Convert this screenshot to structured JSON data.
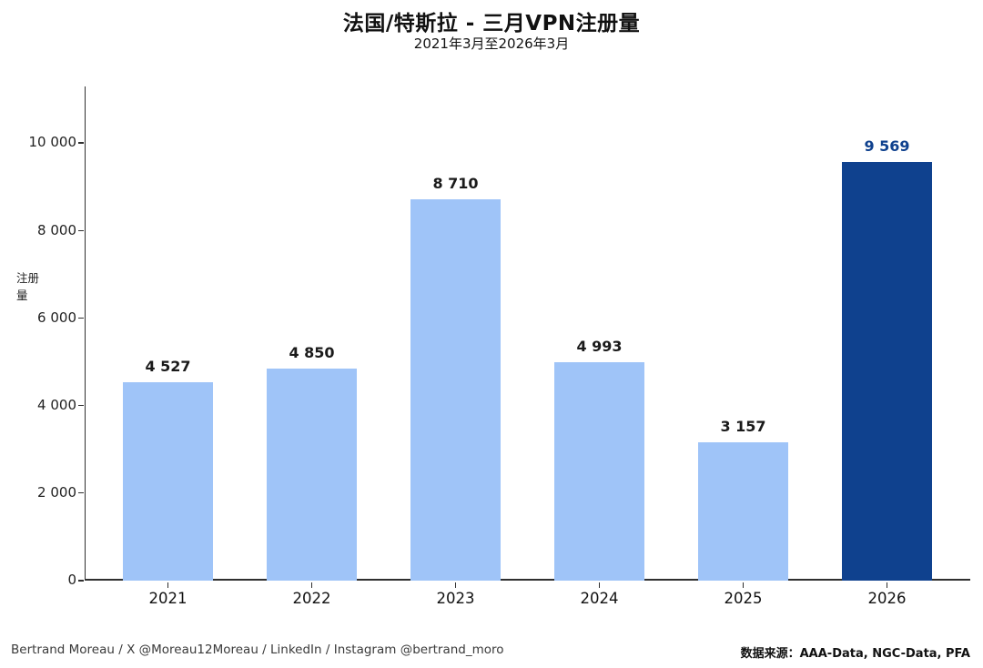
{
  "header": {
    "title": "法国/特斯拉 - 三月VPN注册量",
    "subtitle": "2021年3月至2026年3月"
  },
  "footer": {
    "credit": "Bertrand Moreau / X @Moreau12Moreau / LinkedIn / Instagram @bertrand_moro",
    "source_label": "数据来源：",
    "source_value": "AAA-Data, NGC-Data, PFA"
  },
  "chart_data": {
    "type": "bar",
    "title": "法国/特斯拉 - 三月VPN注册量",
    "subtitle": "2021年3月至2026年3月",
    "xlabel": "",
    "ylabel": "注册量",
    "categories": [
      "2021",
      "2022",
      "2023",
      "2024",
      "2025",
      "2026"
    ],
    "values": [
      4527,
      4850,
      8710,
      4993,
      3157,
      9569
    ],
    "value_labels": [
      "4 527",
      "4 850",
      "8 710",
      "4 993",
      "3 157",
      "9 569"
    ],
    "y_tick_values": [
      0,
      2000,
      4000,
      6000,
      8000,
      10000
    ],
    "y_tick_labels": [
      "0",
      "2 000",
      "4 000",
      "6 000",
      "8 000",
      "10 000"
    ],
    "ylim": [
      0,
      11300
    ],
    "grid": false,
    "legend": false,
    "highlight_index": 5,
    "colors": {
      "bar": "#9FC4F8",
      "highlight_bar": "#0F418E",
      "value_label": "#1A1A1A",
      "highlight_value_label": "#0F418E"
    }
  }
}
